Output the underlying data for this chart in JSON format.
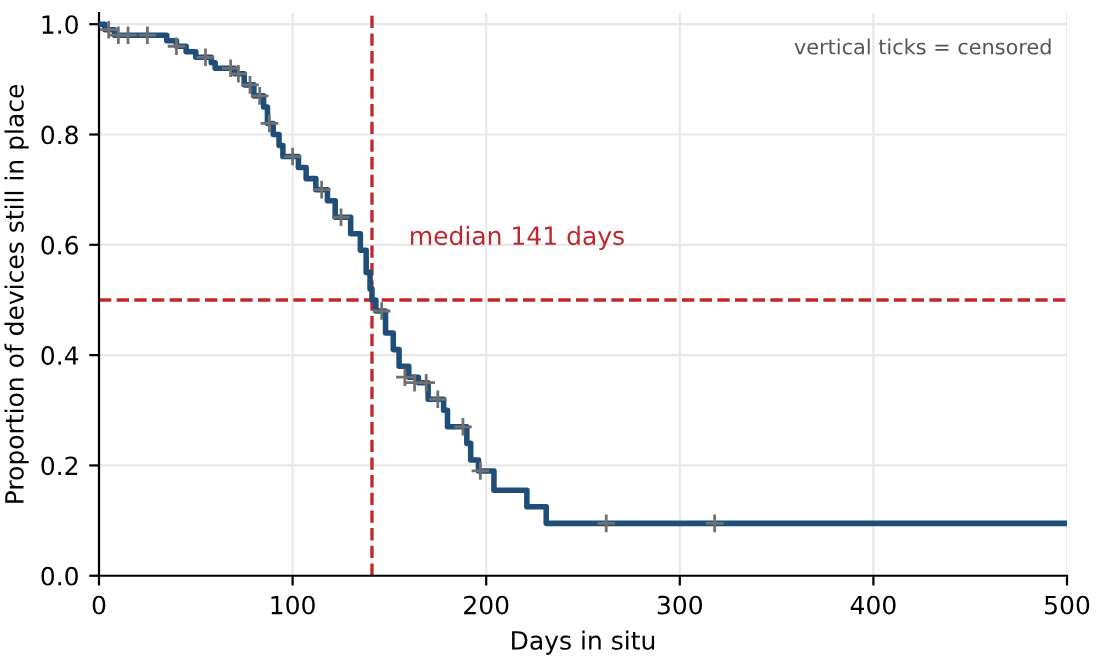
{
  "chart_data": {
    "type": "step",
    "xlabel": "Days in situ",
    "ylabel": "Proportion of devices still in place",
    "xlim": [
      0,
      500
    ],
    "ylim": [
      0,
      1.02
    ],
    "xticks": [
      0,
      100,
      200,
      300,
      400,
      500
    ],
    "yticks": [
      {
        "value": 0,
        "label": "0.0"
      },
      {
        "value": 0.2,
        "label": "0.2"
      },
      {
        "value": 0.4,
        "label": "0.4"
      },
      {
        "value": 0.6,
        "label": "0.6"
      },
      {
        "value": 0.8,
        "label": "0.8"
      },
      {
        "value": 1,
        "label": "1.0"
      }
    ],
    "grid": true,
    "legend": false,
    "series": [
      {
        "color": "#1f4e79",
        "x": [
          0,
          3,
          8,
          35,
          40,
          45,
          50,
          58,
          60,
          70,
          75,
          80,
          85,
          87,
          90,
          93,
          95,
          103,
          107,
          112,
          118,
          122,
          130,
          135,
          138,
          140,
          141,
          143,
          148,
          152,
          155,
          160,
          165,
          170,
          178,
          180,
          190,
          192,
          196,
          204,
          221,
          231,
          500
        ],
        "values": [
          1.0,
          0.99,
          0.98,
          0.97,
          0.96,
          0.95,
          0.94,
          0.93,
          0.92,
          0.91,
          0.89,
          0.87,
          0.85,
          0.82,
          0.8,
          0.78,
          0.76,
          0.74,
          0.72,
          0.7,
          0.68,
          0.65,
          0.62,
          0.59,
          0.55,
          0.52,
          0.5,
          0.48,
          0.44,
          0.41,
          0.38,
          0.36,
          0.35,
          0.32,
          0.3,
          0.27,
          0.24,
          0.21,
          0.19,
          0.155,
          0.125,
          0.095,
          0.095
        ]
      },
      {
        "type": "scatter",
        "marker": "cross",
        "color": "#707070",
        "x": [
          5,
          10,
          15,
          25,
          40,
          55,
          68,
          72,
          78,
          83,
          88,
          100,
          115,
          125,
          146,
          158,
          163,
          169,
          175,
          188,
          197,
          262,
          318
        ],
        "values": [
          0.99,
          0.98,
          0.98,
          0.98,
          0.96,
          0.94,
          0.92,
          0.91,
          0.89,
          0.87,
          0.82,
          0.76,
          0.7,
          0.65,
          0.48,
          0.36,
          0.35,
          0.35,
          0.32,
          0.27,
          0.19,
          0.095,
          0.095
        ]
      }
    ],
    "ref_lines": [
      {
        "axis": "x",
        "value": 141,
        "color": "#c0272d",
        "line_style": "dashed"
      },
      {
        "axis": "y",
        "value": 0.5,
        "label": "median 141 days",
        "color": "#c0272d",
        "line_style": "dashed"
      }
    ],
    "annotations": [
      "vertical ticks = censored"
    ]
  }
}
